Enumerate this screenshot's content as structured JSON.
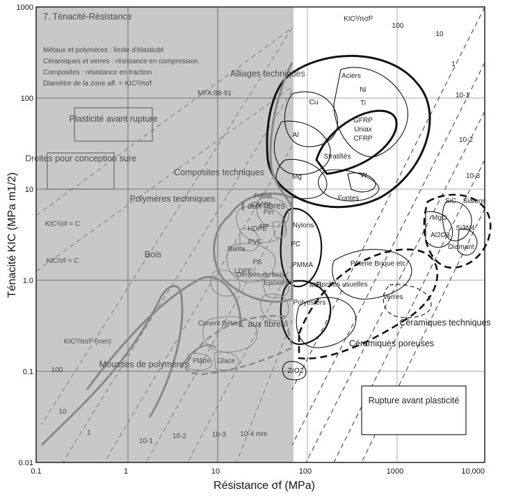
{
  "chart_data": {
    "type": "scatter",
    "title": "7. Ténacité-Résistance",
    "xlabel": "Résistance σf (MPa)",
    "ylabel": "Ténacité KIC (MPa m1/2)",
    "x_scale": "log",
    "y_scale": "log",
    "xlim": [
      0.1,
      10000
    ],
    "ylim": [
      0.01,
      1000
    ],
    "x_ticks": [
      "0.1",
      "1",
      "10",
      "100",
      "1000",
      "10,000"
    ],
    "y_ticks": [
      "0.01",
      "0.1",
      "1.0",
      "10",
      "100",
      "1000"
    ],
    "grid": true,
    "notes": [
      "Métaux et polymères : limite d'élasticité",
      "Céramiques et verres : résistance en compression",
      "Composites : résistance en traction",
      "Diamètre de la zone aff. = KIC²/πσf"
    ],
    "reference": "MFA:88-91",
    "guide_lines_label": "KIC²/πσf²",
    "guide_lines_label_mm": "KIC²/πσf² (mm)",
    "guide_lines_upper": [
      "100",
      "10",
      "1",
      "10-1",
      "10-2",
      "10-3"
    ],
    "guide_lines_lower": [
      "100",
      "10",
      "1",
      "10-1",
      "10-2",
      "10-3",
      "10-4 mm"
    ],
    "design_lines": [
      "KIC²/σf = C",
      "KIC/σf = C"
    ],
    "boxes": [
      "Plasticité avant rupture",
      "Droites pour conception sure",
      "Rupture avant plasticité"
    ],
    "family_labels": [
      "Alliages techniques",
      "Composites techniques",
      "Polymères techniques",
      "Bois",
      "∥ aux fibres",
      "⊥ aux fibres",
      "Mousses de polymères",
      "Céramiques techniques",
      "Céramiques poreuses"
    ],
    "materials": [
      "Aciers",
      "Ni",
      "Ti",
      "Cu",
      "Al",
      "Mg",
      "W",
      "Fontes",
      "GFRP",
      "Uniax",
      "CFRP",
      "Stratifiés",
      "Frêne",
      "Chêne",
      "Pin",
      "HDPE",
      "PP",
      "PVC",
      "PS",
      "LDPE",
      "Balsa",
      "Dérivés du bois",
      "Nylons",
      "PC",
      "PMMA",
      "MEL",
      "Epoxies",
      "Polyesters",
      "Roches usuelles",
      "Poterie Brique etc.",
      "Verres",
      "Ciment Béton",
      "Plâtre",
      "Glace",
      "ZrO2",
      "SiC",
      "Sialons",
      "MgO",
      "Al2O3",
      "Si3N4",
      "Diamant"
    ]
  }
}
